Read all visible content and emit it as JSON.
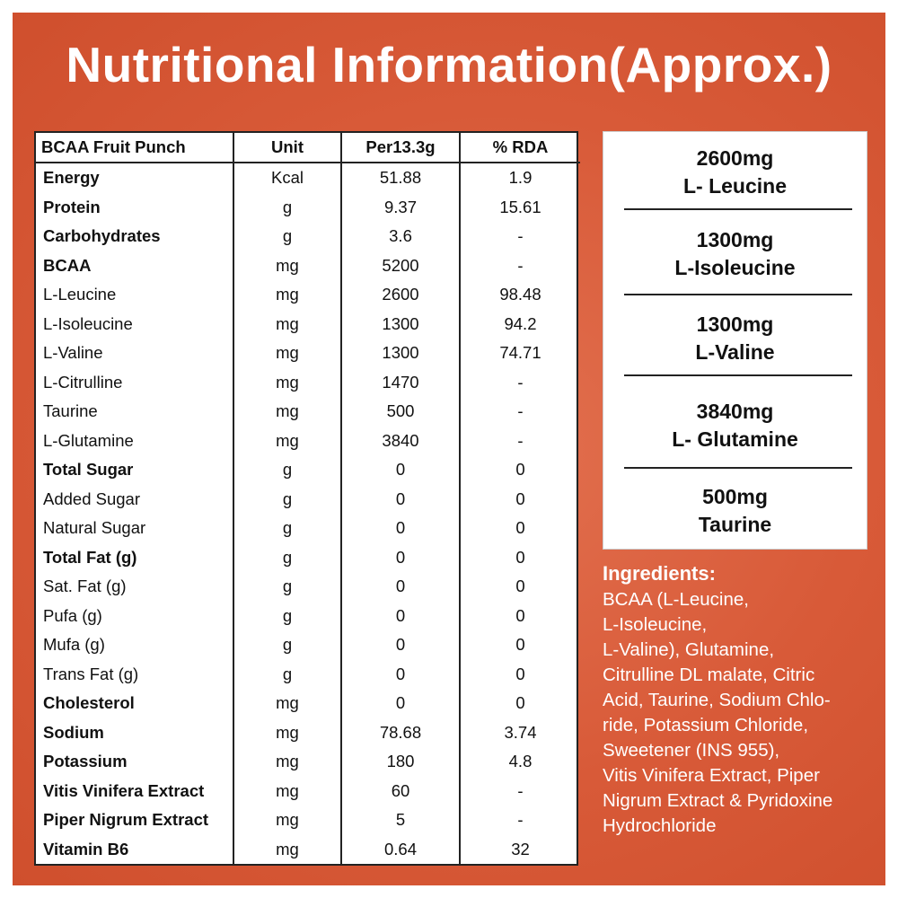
{
  "title": "Nutritional Information(Approx.)",
  "colors": {
    "background": "#d85a38",
    "text_light": "#ffffff",
    "text_dark": "#111111"
  },
  "table": {
    "headers": [
      "BCAA Fruit Punch",
      "Unit",
      "Per13.3g",
      "% RDA"
    ],
    "rows": [
      {
        "name": "Energy",
        "unit": "Kcal",
        "per": "51.88",
        "rda": "1.9",
        "bold": true
      },
      {
        "name": "Protein",
        "unit": "g",
        "per": "9.37",
        "rda": "15.61",
        "bold": true
      },
      {
        "name": "Carbohydrates",
        "unit": "g",
        "per": "3.6",
        "rda": "-",
        "bold": true
      },
      {
        "name": "BCAA",
        "unit": "mg",
        "per": "5200",
        "rda": "-",
        "bold": true
      },
      {
        "name": "L-Leucine",
        "unit": "mg",
        "per": "2600",
        "rda": "98.48",
        "bold": false
      },
      {
        "name": "L-Isoleucine",
        "unit": "mg",
        "per": "1300",
        "rda": "94.2",
        "bold": false
      },
      {
        "name": "L-Valine",
        "unit": "mg",
        "per": "1300",
        "rda": "74.71",
        "bold": false
      },
      {
        "name": "L-Citrulline",
        "unit": "mg",
        "per": "1470",
        "rda": "-",
        "bold": false
      },
      {
        "name": "Taurine",
        "unit": "mg",
        "per": "500",
        "rda": "-",
        "bold": false
      },
      {
        "name": "L-Glutamine",
        "unit": "mg",
        "per": "3840",
        "rda": "-",
        "bold": false
      },
      {
        "name": "Total Sugar",
        "unit": "g",
        "per": "0",
        "rda": "0",
        "bold": true
      },
      {
        "name": "Added Sugar",
        "unit": "g",
        "per": "0",
        "rda": "0",
        "bold": false
      },
      {
        "name": "Natural Sugar",
        "unit": "g",
        "per": "0",
        "rda": "0",
        "bold": false
      },
      {
        "name": "Total Fat (g)",
        "unit": "g",
        "per": "0",
        "rda": "0",
        "bold": true
      },
      {
        "name": "Sat. Fat (g)",
        "unit": "g",
        "per": "0",
        "rda": "0",
        "bold": false
      },
      {
        "name": "Pufa (g)",
        "unit": "g",
        "per": "0",
        "rda": "0",
        "bold": false
      },
      {
        "name": "Mufa (g)",
        "unit": "g",
        "per": "0",
        "rda": "0",
        "bold": false
      },
      {
        "name": "Trans Fat (g)",
        "unit": "g",
        "per": "0",
        "rda": "0",
        "bold": false
      },
      {
        "name": "Cholesterol",
        "unit": "mg",
        "per": "0",
        "rda": "0",
        "bold": true
      },
      {
        "name": "Sodium",
        "unit": "mg",
        "per": "78.68",
        "rda": "3.74",
        "bold": true
      },
      {
        "name": "Potassium",
        "unit": "mg",
        "per": "180",
        "rda": "4.8",
        "bold": true
      },
      {
        "name": "Vitis Vinifera Extract",
        "unit": "mg",
        "per": "60",
        "rda": "-",
        "bold": true
      },
      {
        "name": "Piper Nigrum Extract",
        "unit": "mg",
        "per": "5",
        "rda": "-",
        "bold": true
      },
      {
        "name": "Vitamin B6",
        "unit": "mg",
        "per": "0.64",
        "rda": "32",
        "bold": true
      }
    ]
  },
  "highlights": [
    {
      "amount": "2600mg",
      "name": "L- Leucine"
    },
    {
      "amount": "1300mg",
      "name": "L-Isoleucine"
    },
    {
      "amount": "1300mg",
      "name": "L-Valine"
    },
    {
      "amount": "3840mg",
      "name": "L- Glutamine"
    },
    {
      "amount": "500mg",
      "name": "Taurine"
    }
  ],
  "ingredients": {
    "title": "Ingredients:",
    "lines": [
      "BCAA (L-Leucine,",
      "L-Isoleucine,",
      "L-Valine), Glutamine,",
      "Citrulline DL malate, Citric",
      "Acid, Taurine, Sodium Chlo-",
      "ride, Potassium Chloride,",
      "Sweetener (INS 955),",
      "Vitis Vinifera Extract, Piper",
      "Nigrum Extract & Pyridoxine",
      "Hydrochloride"
    ]
  }
}
